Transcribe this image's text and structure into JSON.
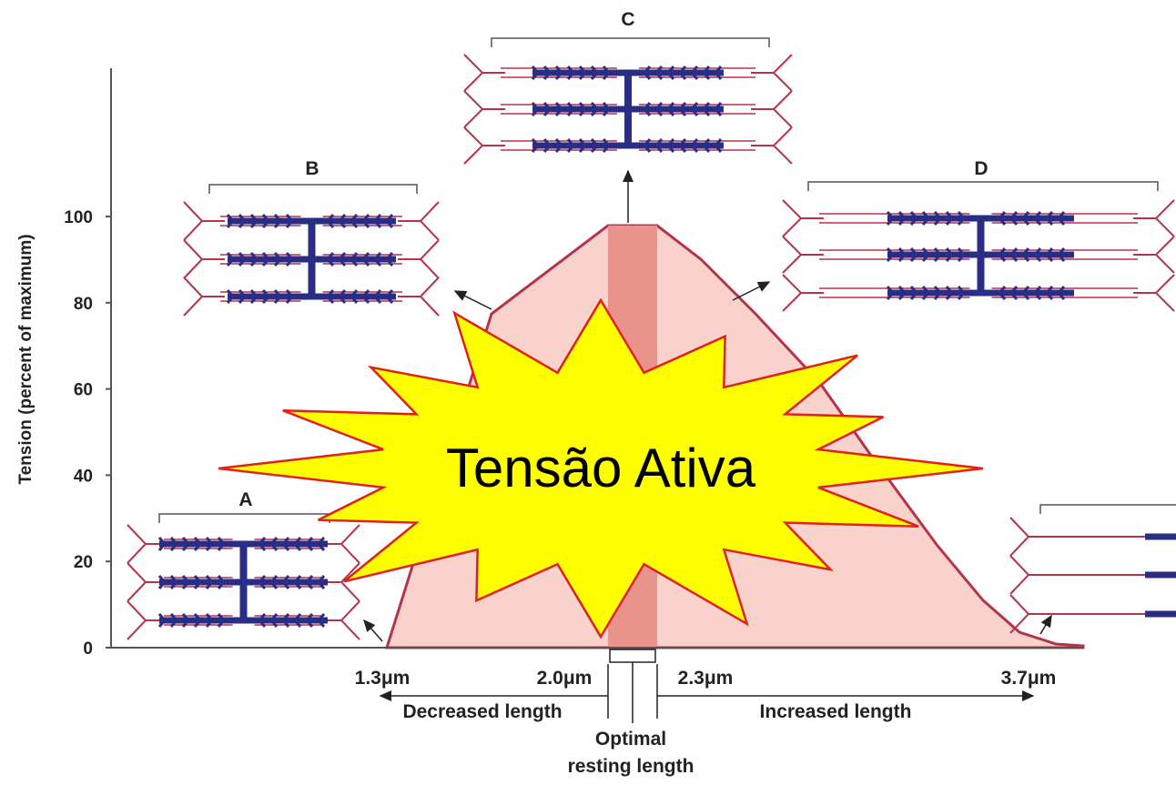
{
  "y_axis": {
    "label": "Tension (percent of maximum)",
    "ticks": [
      "0",
      "20",
      "40",
      "60",
      "80",
      "100"
    ]
  },
  "x_labels": [
    "1.3μm",
    "2.0μm",
    "2.3μm",
    "3.7μm"
  ],
  "panels": [
    "A",
    "B",
    "C",
    "D"
  ],
  "length_labels": {
    "decreased": "Decreased length",
    "increased": "Increased length",
    "optimal": [
      "Optimal",
      "resting length"
    ]
  },
  "callout": "Tensão Ativa"
}
